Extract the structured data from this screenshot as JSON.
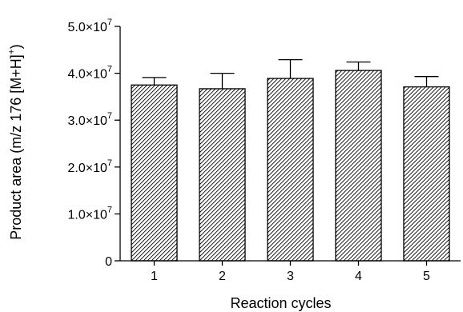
{
  "chart_data": {
    "type": "bar",
    "title": "",
    "xlabel": "Reaction cycles",
    "ylabel": {
      "prefix": "Product area (m/z 176 [M+H]",
      "superscript": "+",
      "suffix": ")"
    },
    "categories": [
      "1",
      "2",
      "3",
      "4",
      "5"
    ],
    "series": [
      {
        "values": [
          37500000,
          36700000,
          38900000,
          40600000,
          37100000
        ],
        "error": [
          1600000,
          3300000,
          4000000,
          1800000,
          2200000
        ]
      }
    ],
    "ylim": [
      0,
      50000000
    ],
    "yticks": [
      0,
      10000000,
      20000000,
      30000000,
      40000000,
      50000000
    ],
    "ytick_labels": [
      {
        "base": "0",
        "exp": ""
      },
      {
        "base": "1.0×10",
        "exp": "7"
      },
      {
        "base": "2.0×10",
        "exp": "7"
      },
      {
        "base": "3.0×10",
        "exp": "7"
      },
      {
        "base": "4.0×10",
        "exp": "7"
      },
      {
        "base": "5.0×10",
        "exp": "7"
      }
    ],
    "grid": false,
    "legend": "none",
    "bar_fill": "diagonal-hatch",
    "colors": {
      "stroke": "#000000",
      "background": "#ffffff"
    }
  }
}
